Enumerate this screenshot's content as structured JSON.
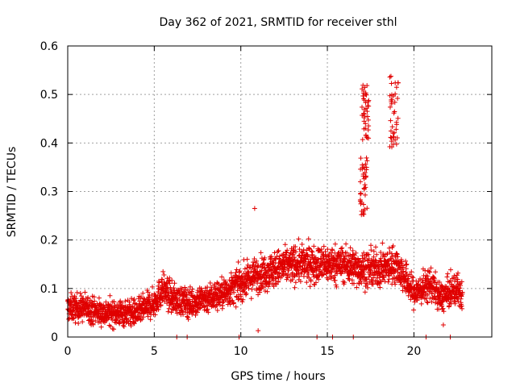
{
  "chart_data": {
    "type": "scatter",
    "title": "Day 362 of 2021, SRMTID for receiver sthl",
    "xlabel": "GPS time / hours",
    "ylabel": "SRMTID / TECUs",
    "xlim": [
      0,
      24.5
    ],
    "ylim": [
      0,
      0.6
    ],
    "x_ticks": [
      0,
      5,
      10,
      15,
      20
    ],
    "y_ticks": [
      0,
      0.1,
      0.2,
      0.3,
      0.4,
      0.5,
      0.6
    ],
    "x_tick_labels": [
      "0",
      "5",
      "10",
      "15",
      "20"
    ],
    "y_tick_labels": [
      "0",
      "0.1",
      "0.2",
      "0.3",
      "0.4",
      "0.5",
      "0.6"
    ],
    "grid": true,
    "marker": "+",
    "marker_color": "#e00000",
    "trend": {
      "x": [
        0,
        1,
        2,
        3,
        4,
        5,
        5.5,
        6,
        7,
        8,
        9,
        10,
        11,
        12,
        13,
        14,
        15,
        16,
        17,
        18,
        19,
        19.5,
        20,
        20.5,
        21,
        21.5,
        22,
        22.5,
        22.8
      ],
      "y": [
        0.06,
        0.06,
        0.05,
        0.05,
        0.05,
        0.07,
        0.1,
        0.08,
        0.07,
        0.08,
        0.09,
        0.11,
        0.13,
        0.14,
        0.15,
        0.15,
        0.15,
        0.15,
        0.14,
        0.14,
        0.15,
        0.12,
        0.09,
        0.1,
        0.11,
        0.08,
        0.09,
        0.1,
        0.08
      ]
    },
    "scatter_amplitude": 0.035,
    "x_range_data": [
      0,
      22.8
    ],
    "n_points_estimate": 2700,
    "peaks": [
      {
        "x": [
          17.0,
          17.4
        ],
        "y": [
          0.4,
          0.52
        ]
      },
      {
        "x": [
          18.6,
          19.1
        ],
        "y": [
          0.38,
          0.54
        ]
      },
      {
        "x": [
          16.9,
          17.3
        ],
        "y": [
          0.25,
          0.37
        ]
      }
    ],
    "outliers": [
      {
        "x": 10.8,
        "y": 0.265
      },
      {
        "x": 11.0,
        "y": 0.013
      },
      {
        "x": 6.3,
        "y": 0.0
      },
      {
        "x": 6.9,
        "y": 0.0
      },
      {
        "x": 9.9,
        "y": 0.0
      },
      {
        "x": 14.4,
        "y": 0.0
      },
      {
        "x": 15.3,
        "y": 0.0
      },
      {
        "x": 16.5,
        "y": 0.0
      },
      {
        "x": 20.7,
        "y": 0.0
      },
      {
        "x": 22.1,
        "y": 0.0
      },
      {
        "x": 21.7,
        "y": 0.025
      }
    ]
  }
}
